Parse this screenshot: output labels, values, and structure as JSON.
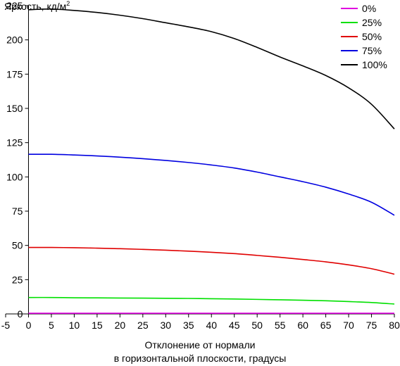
{
  "chart_data": {
    "type": "line",
    "ylabel": "Яркость, кд/м",
    "ylabel_sup": "2",
    "xlabel_line1": "Отклонение от нормали",
    "xlabel_line2": "в горизонтальной плоскости, градусы",
    "xlim": [
      -5,
      80
    ],
    "ylim": [
      0,
      225
    ],
    "x_ticks": [
      -5,
      0,
      5,
      10,
      15,
      20,
      25,
      30,
      35,
      40,
      45,
      50,
      55,
      60,
      65,
      70,
      75,
      80
    ],
    "y_ticks": [
      0,
      25,
      50,
      75,
      100,
      125,
      150,
      175,
      200,
      225
    ],
    "grid": false,
    "legend_position": "top-right",
    "x": [
      0,
      5,
      10,
      15,
      20,
      25,
      30,
      35,
      40,
      45,
      50,
      55,
      60,
      65,
      70,
      75,
      80
    ],
    "series": [
      {
        "name": "0%",
        "color": "#e000e0",
        "values": [
          0.5,
          0.5,
          0.5,
          0.5,
          0.5,
          0.5,
          0.5,
          0.5,
          0.5,
          0.5,
          0.5,
          0.5,
          0.5,
          0.5,
          0.5,
          0.5,
          0.5
        ]
      },
      {
        "name": "25%",
        "color": "#00e000",
        "values": [
          12,
          12,
          11.8,
          11.7,
          11.6,
          11.5,
          11.4,
          11.3,
          11.1,
          10.9,
          10.6,
          10.3,
          10,
          9.6,
          9,
          8.3,
          7.2
        ]
      },
      {
        "name": "50%",
        "color": "#e00000",
        "values": [
          48.5,
          48.5,
          48.3,
          48,
          47.6,
          47.1,
          46.5,
          45.8,
          45,
          44,
          42.7,
          41.3,
          39.7,
          38,
          35.8,
          33,
          29
        ]
      },
      {
        "name": "75%",
        "color": "#0000e0",
        "values": [
          116.5,
          116.5,
          116,
          115.3,
          114.4,
          113.3,
          112,
          110.5,
          108.7,
          106.5,
          103.5,
          100,
          96.5,
          92.5,
          87.5,
          81.5,
          72
        ]
      },
      {
        "name": "100%",
        "color": "#000000",
        "values": [
          222,
          222.5,
          221.5,
          220,
          218,
          215.5,
          212.5,
          209.5,
          206,
          201,
          194.5,
          187.5,
          181,
          174,
          165,
          153,
          135
        ]
      }
    ]
  }
}
